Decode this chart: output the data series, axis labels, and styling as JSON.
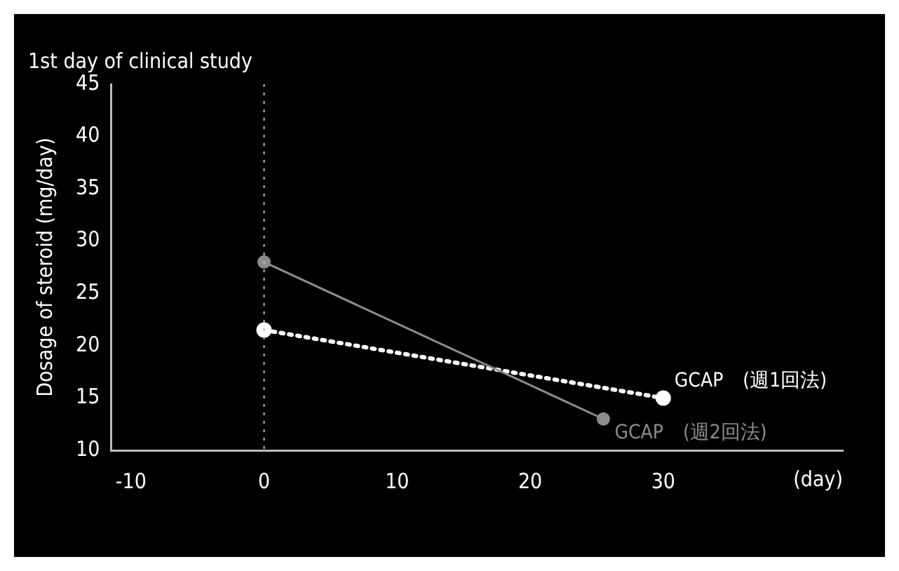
{
  "chart_data": {
    "type": "line",
    "xlabel": "(day)",
    "ylabel": "Dosage of steroid (mg/day)",
    "xlim": [
      -11.5,
      43.5
    ],
    "xticks": [
      -10,
      0,
      10,
      20,
      30
    ],
    "ylim": [
      10,
      45
    ],
    "yticks": [
      10,
      15,
      20,
      25,
      30,
      35,
      40,
      45
    ],
    "series": [
      {
        "name": "GCAP　(週2回法)",
        "color": "#8c8c8c",
        "x": [
          0,
          25.5
        ],
        "values": [
          28,
          13
        ],
        "line_style": "solid"
      },
      {
        "name": "GCAP　(週1回法)",
        "color": "#ffffff",
        "x": [
          0,
          30
        ],
        "values": [
          21.5,
          15
        ],
        "line_style": "dotted"
      }
    ],
    "ref_lines": [
      {
        "axis": "x",
        "value": 0,
        "label": "1st day of clinical study",
        "color": "#bdbdbd",
        "line_style": "dotted"
      }
    ],
    "marker": "circle",
    "grid": false,
    "legend": false
  }
}
